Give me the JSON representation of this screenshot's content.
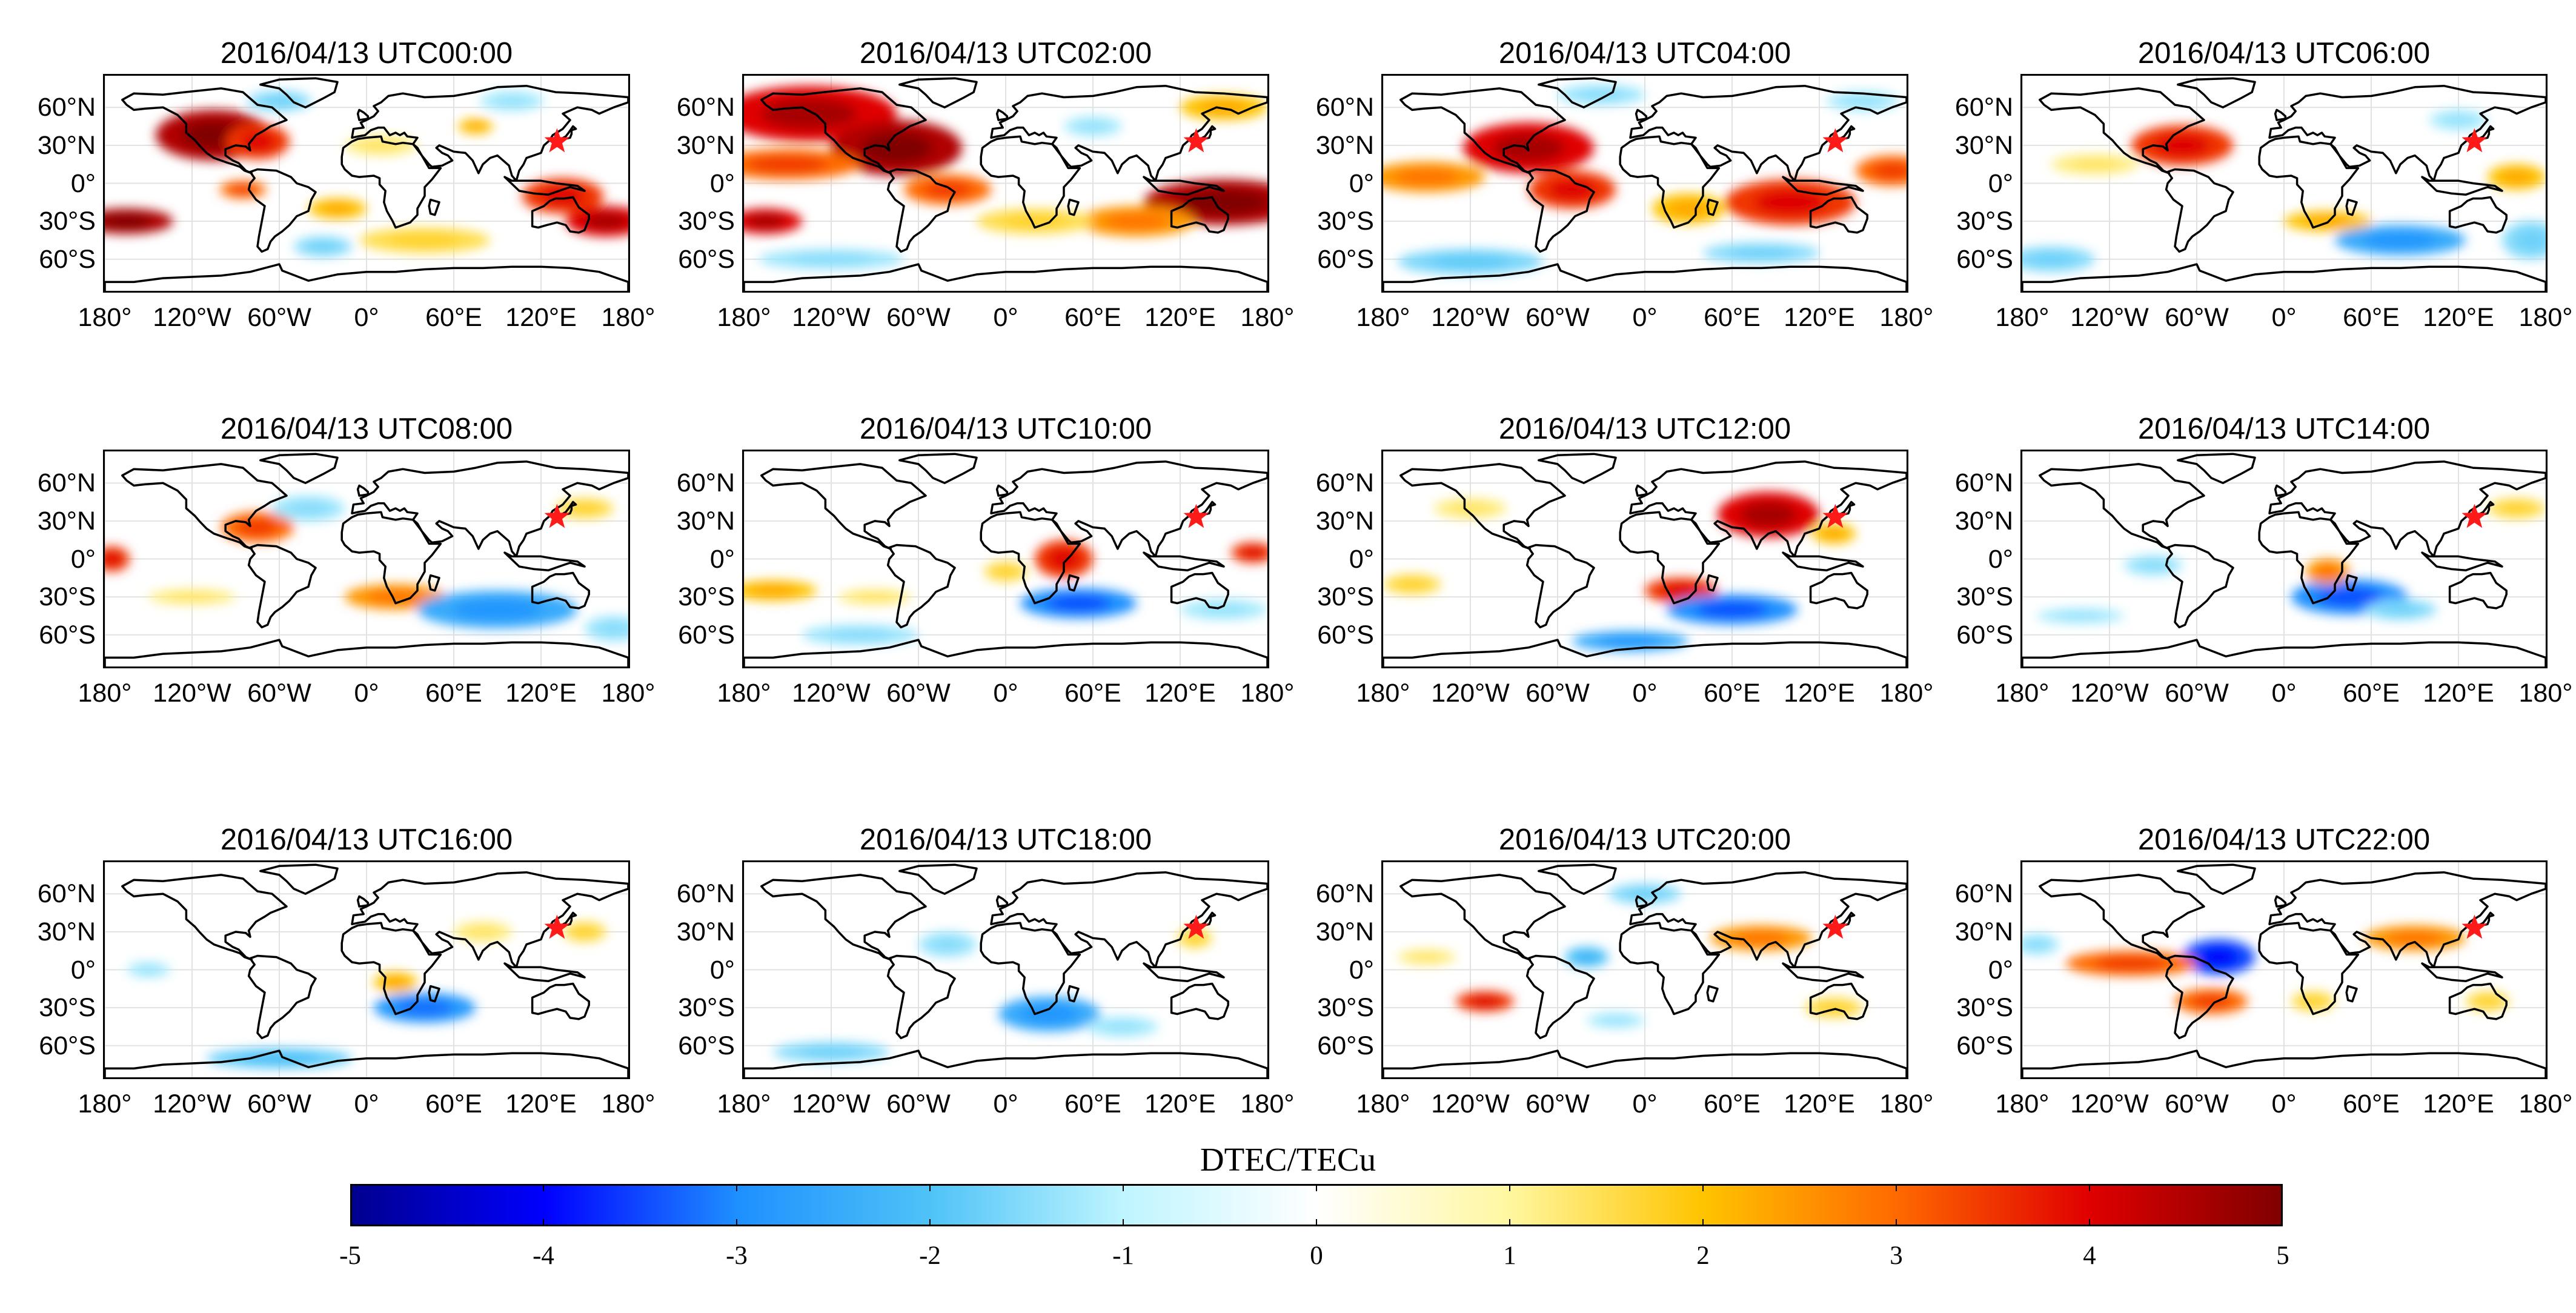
{
  "figure": {
    "panels": [
      {
        "title": "2016/04/13 UTC00:00",
        "blobs": [
          {
            "lon": -105,
            "lat": 38,
            "w": 40,
            "h": 20,
            "v": 4.5
          },
          {
            "lon": -75,
            "lat": 33,
            "w": 22,
            "h": 14,
            "v": 3.5
          },
          {
            "lon": -165,
            "lat": -30,
            "w": 32,
            "h": 10,
            "v": 4.5
          },
          {
            "lon": -85,
            "lat": -5,
            "w": 16,
            "h": 7,
            "v": 3
          },
          {
            "lon": 135,
            "lat": -10,
            "w": 28,
            "h": 14,
            "v": 3.5
          },
          {
            "lon": 165,
            "lat": -30,
            "w": 28,
            "h": 12,
            "v": 4
          },
          {
            "lon": 40,
            "lat": -45,
            "w": 45,
            "h": 10,
            "v": 1.5
          },
          {
            "lon": -20,
            "lat": -20,
            "w": 20,
            "h": 8,
            "v": 2
          },
          {
            "lon": 10,
            "lat": 30,
            "w": 25,
            "h": 8,
            "v": 1.2
          },
          {
            "lon": 75,
            "lat": 45,
            "w": 12,
            "h": 6,
            "v": 2
          },
          {
            "lon": -60,
            "lat": 65,
            "w": 22,
            "h": 8,
            "v": -1.5
          },
          {
            "lon": 100,
            "lat": 65,
            "w": 22,
            "h": 8,
            "v": -1.2
          },
          {
            "lon": -30,
            "lat": -50,
            "w": 20,
            "h": 8,
            "v": -1.5
          }
        ]
      },
      {
        "title": "2016/04/13 UTC02:00",
        "blobs": [
          {
            "lon": -135,
            "lat": 55,
            "w": 60,
            "h": 22,
            "v": 4
          },
          {
            "lon": -75,
            "lat": 28,
            "w": 45,
            "h": 22,
            "v": 4.5
          },
          {
            "lon": -150,
            "lat": 15,
            "w": 50,
            "h": 12,
            "v": 3
          },
          {
            "lon": -40,
            "lat": -5,
            "w": 30,
            "h": 12,
            "v": 3
          },
          {
            "lon": -165,
            "lat": -30,
            "w": 25,
            "h": 10,
            "v": 4
          },
          {
            "lon": 150,
            "lat": -15,
            "w": 55,
            "h": 18,
            "v": 4.5
          },
          {
            "lon": 90,
            "lat": -30,
            "w": 40,
            "h": 12,
            "v": 2.5
          },
          {
            "lon": 20,
            "lat": -30,
            "w": 40,
            "h": 10,
            "v": 1.5
          },
          {
            "lon": 150,
            "lat": 60,
            "w": 30,
            "h": 10,
            "v": 2
          },
          {
            "lon": -120,
            "lat": -60,
            "w": 50,
            "h": 8,
            "v": -1.3
          },
          {
            "lon": 60,
            "lat": 45,
            "w": 20,
            "h": 8,
            "v": -1.2
          }
        ]
      },
      {
        "title": "2016/04/13 UTC04:00",
        "blobs": [
          {
            "lon": -80,
            "lat": 28,
            "w": 45,
            "h": 20,
            "v": 4
          },
          {
            "lon": -150,
            "lat": 5,
            "w": 40,
            "h": 12,
            "v": 2.5
          },
          {
            "lon": -50,
            "lat": -5,
            "w": 30,
            "h": 15,
            "v": 3.5
          },
          {
            "lon": 100,
            "lat": -15,
            "w": 45,
            "h": 18,
            "v": 3.5
          },
          {
            "lon": 170,
            "lat": 10,
            "w": 25,
            "h": 12,
            "v": 3
          },
          {
            "lon": 30,
            "lat": -20,
            "w": 25,
            "h": 12,
            "v": 2
          },
          {
            "lon": -120,
            "lat": -62,
            "w": 50,
            "h": 10,
            "v": -1.6
          },
          {
            "lon": 80,
            "lat": -55,
            "w": 40,
            "h": 8,
            "v": -1.5
          },
          {
            "lon": -30,
            "lat": 70,
            "w": 30,
            "h": 8,
            "v": -1.3
          },
          {
            "lon": 150,
            "lat": 65,
            "w": 25,
            "h": 8,
            "v": -1.2
          }
        ]
      },
      {
        "title": "2016/04/13 UTC06:00",
        "blobs": [
          {
            "lon": -70,
            "lat": 30,
            "w": 35,
            "h": 16,
            "v": 3.5
          },
          {
            "lon": 30,
            "lat": -30,
            "w": 30,
            "h": 8,
            "v": 2
          },
          {
            "lon": 80,
            "lat": -45,
            "w": 45,
            "h": 12,
            "v": -2.5
          },
          {
            "lon": -160,
            "lat": -60,
            "w": 30,
            "h": 10,
            "v": -1.5
          },
          {
            "lon": 170,
            "lat": -45,
            "w": 20,
            "h": 15,
            "v": -1.5
          },
          {
            "lon": 160,
            "lat": 5,
            "w": 20,
            "h": 10,
            "v": 2
          },
          {
            "lon": -130,
            "lat": 15,
            "w": 30,
            "h": 8,
            "v": 1.2
          },
          {
            "lon": 120,
            "lat": 50,
            "w": 20,
            "h": 8,
            "v": -1.2
          }
        ]
      },
      {
        "title": "2016/04/13 UTC08:00",
        "blobs": [
          {
            "lon": -75,
            "lat": 25,
            "w": 25,
            "h": 12,
            "v": 3
          },
          {
            "lon": -175,
            "lat": 0,
            "w": 12,
            "h": 10,
            "v": 3.5
          },
          {
            "lon": 20,
            "lat": -30,
            "w": 35,
            "h": 10,
            "v": 2.5
          },
          {
            "lon": 90,
            "lat": -40,
            "w": 55,
            "h": 15,
            "v": -2.5
          },
          {
            "lon": -40,
            "lat": 40,
            "w": 25,
            "h": 10,
            "v": -1.3
          },
          {
            "lon": -120,
            "lat": -30,
            "w": 30,
            "h": 6,
            "v": 1.2
          },
          {
            "lon": 150,
            "lat": 40,
            "w": 20,
            "h": 8,
            "v": 1.5
          },
          {
            "lon": 170,
            "lat": -55,
            "w": 20,
            "h": 10,
            "v": -1.3
          }
        ]
      },
      {
        "title": "2016/04/13 UTC10:00",
        "blobs": [
          {
            "lon": 50,
            "lat": -35,
            "w": 40,
            "h": 12,
            "v": -3
          },
          {
            "lon": 40,
            "lat": 0,
            "w": 20,
            "h": 15,
            "v": 3.5
          },
          {
            "lon": -160,
            "lat": -25,
            "w": 30,
            "h": 8,
            "v": 2
          },
          {
            "lon": 170,
            "lat": 5,
            "w": 15,
            "h": 8,
            "v": 3.5
          },
          {
            "lon": -90,
            "lat": -30,
            "w": 25,
            "h": 6,
            "v": 1.2
          },
          {
            "lon": 0,
            "lat": -10,
            "w": 15,
            "h": 8,
            "v": 1.5
          },
          {
            "lon": -100,
            "lat": -60,
            "w": 40,
            "h": 8,
            "v": -1.3
          },
          {
            "lon": 150,
            "lat": -40,
            "w": 30,
            "h": 8,
            "v": -1.2
          }
        ]
      },
      {
        "title": "2016/04/13 UTC12:00",
        "blobs": [
          {
            "lon": 85,
            "lat": 35,
            "w": 35,
            "h": 18,
            "v": 4
          },
          {
            "lon": 25,
            "lat": -25,
            "w": 25,
            "h": 10,
            "v": 3.5
          },
          {
            "lon": 60,
            "lat": -40,
            "w": 45,
            "h": 12,
            "v": -3
          },
          {
            "lon": -10,
            "lat": -65,
            "w": 40,
            "h": 8,
            "v": -2.5
          },
          {
            "lon": -120,
            "lat": 40,
            "w": 25,
            "h": 8,
            "v": 1.2
          },
          {
            "lon": -160,
            "lat": -20,
            "w": 20,
            "h": 8,
            "v": 1.5
          },
          {
            "lon": 130,
            "lat": 20,
            "w": 15,
            "h": 8,
            "v": 2
          }
        ]
      },
      {
        "title": "2016/04/13 UTC14:00",
        "blobs": [
          {
            "lon": 45,
            "lat": -30,
            "w": 40,
            "h": 14,
            "v": -3
          },
          {
            "lon": 30,
            "lat": -10,
            "w": 15,
            "h": 10,
            "v": 2.5
          },
          {
            "lon": -90,
            "lat": -5,
            "w": 20,
            "h": 8,
            "v": -1.3
          },
          {
            "lon": 160,
            "lat": 40,
            "w": 20,
            "h": 8,
            "v": 1.5
          },
          {
            "lon": -140,
            "lat": -45,
            "w": 30,
            "h": 6,
            "v": -1.2
          },
          {
            "lon": 80,
            "lat": -40,
            "w": 25,
            "h": 8,
            "v": -1.5
          }
        ]
      },
      {
        "title": "2016/04/13 UTC16:00",
        "blobs": [
          {
            "lon": 40,
            "lat": -30,
            "w": 35,
            "h": 12,
            "v": -2.8
          },
          {
            "lon": 20,
            "lat": -10,
            "w": 15,
            "h": 8,
            "v": 2
          },
          {
            "lon": -60,
            "lat": -70,
            "w": 50,
            "h": 8,
            "v": -1.8
          },
          {
            "lon": 80,
            "lat": 30,
            "w": 20,
            "h": 8,
            "v": 1.2
          },
          {
            "lon": -150,
            "lat": 0,
            "w": 15,
            "h": 6,
            "v": -1.2
          },
          {
            "lon": 150,
            "lat": 30,
            "w": 15,
            "h": 8,
            "v": 1.5
          }
        ]
      },
      {
        "title": "2016/04/13 UTC18:00",
        "blobs": [
          {
            "lon": 30,
            "lat": -35,
            "w": 35,
            "h": 14,
            "v": -2.5
          },
          {
            "lon": -120,
            "lat": -65,
            "w": 40,
            "h": 8,
            "v": -1.5
          },
          {
            "lon": 130,
            "lat": 25,
            "w": 12,
            "h": 8,
            "v": 1.5
          },
          {
            "lon": -40,
            "lat": 20,
            "w": 20,
            "h": 10,
            "v": -1.3
          },
          {
            "lon": 80,
            "lat": -45,
            "w": 25,
            "h": 8,
            "v": -1.2
          }
        ]
      },
      {
        "title": "2016/04/13 UTC20:00",
        "blobs": [
          {
            "lon": -110,
            "lat": -25,
            "w": 20,
            "h": 8,
            "v": 3.5
          },
          {
            "lon": 80,
            "lat": 25,
            "w": 35,
            "h": 10,
            "v": 2.5
          },
          {
            "lon": -40,
            "lat": 10,
            "w": 15,
            "h": 8,
            "v": -2
          },
          {
            "lon": 0,
            "lat": 60,
            "w": 25,
            "h": 8,
            "v": -1.5
          },
          {
            "lon": -150,
            "lat": 10,
            "w": 20,
            "h": 6,
            "v": 1.2
          },
          {
            "lon": 130,
            "lat": -30,
            "w": 20,
            "h": 8,
            "v": 1.5
          },
          {
            "lon": -20,
            "lat": -40,
            "w": 20,
            "h": 6,
            "v": -1.2
          }
        ]
      },
      {
        "title": "2016/04/13 UTC22:00",
        "blobs": [
          {
            "lon": -45,
            "lat": 10,
            "w": 25,
            "h": 14,
            "v": -3.5
          },
          {
            "lon": -105,
            "lat": 5,
            "w": 45,
            "h": 10,
            "v": 3
          },
          {
            "lon": -50,
            "lat": -25,
            "w": 25,
            "h": 10,
            "v": 3
          },
          {
            "lon": 90,
            "lat": 25,
            "w": 35,
            "h": 10,
            "v": 2.5
          },
          {
            "lon": -170,
            "lat": 20,
            "w": 15,
            "h": 8,
            "v": -1.3
          },
          {
            "lon": 20,
            "lat": -25,
            "w": 15,
            "h": 8,
            "v": 1.5
          },
          {
            "lon": 140,
            "lat": -25,
            "w": 15,
            "h": 8,
            "v": 1.5
          }
        ]
      }
    ],
    "lat_ticks": [
      {
        "label": "60°N",
        "lat": 60
      },
      {
        "label": "30°N",
        "lat": 30
      },
      {
        "label": "0°",
        "lat": 0
      },
      {
        "label": "30°S",
        "lat": -30
      },
      {
        "label": "60°S",
        "lat": -60
      }
    ],
    "lon_ticks": [
      {
        "label": "180°",
        "lon": -180
      },
      {
        "label": "120°W",
        "lon": -120
      },
      {
        "label": "60°W",
        "lon": -60
      },
      {
        "label": "0°",
        "lon": 0
      },
      {
        "label": "60°E",
        "lon": 60
      },
      {
        "label": "120°E",
        "lon": 120
      },
      {
        "label": "180°",
        "lon": 180
      }
    ],
    "epicenter": {
      "lon": 131,
      "lat": 33,
      "color": "#ff1a1a"
    },
    "lat_range": [
      -85,
      85
    ],
    "lon_range": [
      -180,
      180
    ]
  },
  "colorbar": {
    "title": "DTEC/TECu",
    "min": -5,
    "max": 5,
    "ticks": [
      "-5",
      "-4",
      "-3",
      "-2",
      "-1",
      "0",
      "1",
      "2",
      "3",
      "4",
      "5"
    ],
    "colors": {
      "-5": "#00008f",
      "-4": "#0000ff",
      "-3": "#1e90ff",
      "-2": "#4fc3f7",
      "-1": "#bff5ff",
      "0": "#ffffff",
      "1": "#fff7a0",
      "2": "#ffc400",
      "3": "#ff6a00",
      "4": "#e00000",
      "5": "#800000"
    }
  }
}
